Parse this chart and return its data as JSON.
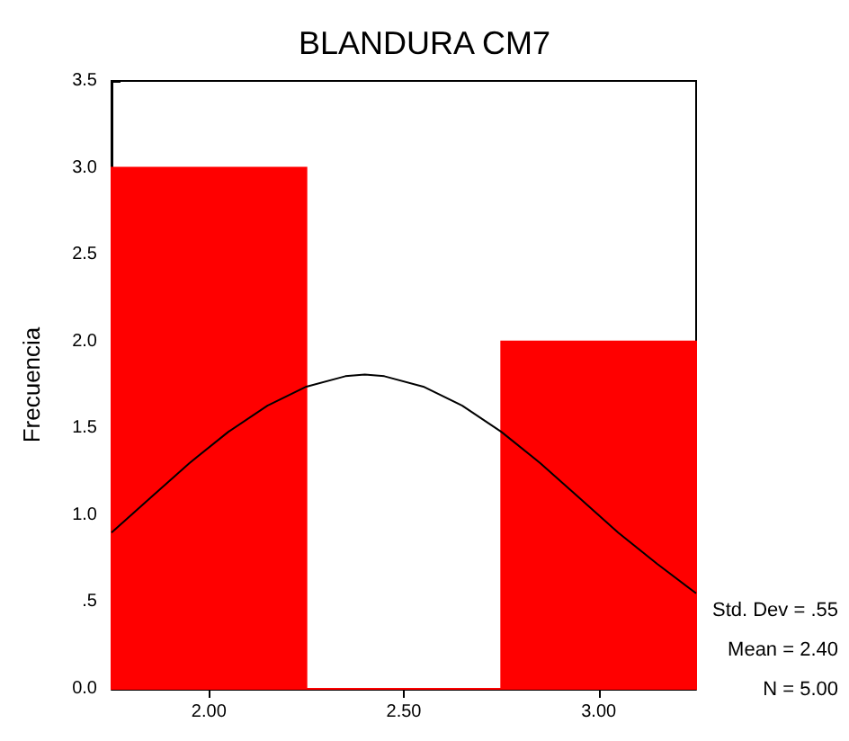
{
  "chart_data": {
    "type": "histogram",
    "title": "BLANDURA CM7",
    "ylabel": "Frecuencia",
    "bins": [
      1.75,
      2.25,
      2.75,
      3.25
    ],
    "series": [
      {
        "color": "#ff0000",
        "values": [
          3,
          0,
          2
        ]
      },
      {
        "type": "line",
        "color": "#000000",
        "x": [
          1.75,
          1.85,
          1.95,
          2.05,
          2.15,
          2.25,
          2.35,
          2.4,
          2.45,
          2.55,
          2.65,
          2.75,
          2.85,
          2.95,
          3.05,
          3.15,
          3.25
        ],
        "values": [
          0.9,
          1.1,
          1.3,
          1.48,
          1.63,
          1.74,
          1.8,
          1.81,
          1.8,
          1.74,
          1.63,
          1.48,
          1.3,
          1.1,
          0.9,
          0.72,
          0.55
        ]
      }
    ],
    "xlim": [
      1.75,
      3.25
    ],
    "xticks": [
      {
        "value": 2,
        "label": "2.00"
      },
      {
        "value": 2.5,
        "label": "2.50"
      },
      {
        "value": 3,
        "label": "3.00"
      }
    ],
    "ylim": [
      0,
      3.5
    ],
    "yticks": [
      {
        "value": 0,
        "label": "0.0"
      },
      {
        "value": 0.5,
        "label": ".5"
      },
      {
        "value": 1,
        "label": "1.0"
      },
      {
        "value": 1.5,
        "label": "1.5"
      },
      {
        "value": 2,
        "label": "2.0"
      },
      {
        "value": 2.5,
        "label": "2.5"
      },
      {
        "value": 3,
        "label": "3.0"
      },
      {
        "value": 3.5,
        "label": "3.5"
      }
    ],
    "grid": false,
    "marker": "none",
    "line_style": "solid",
    "annotations": [
      "Std. Dev = .55",
      "Mean = 2.40",
      "N = 5.00"
    ]
  }
}
